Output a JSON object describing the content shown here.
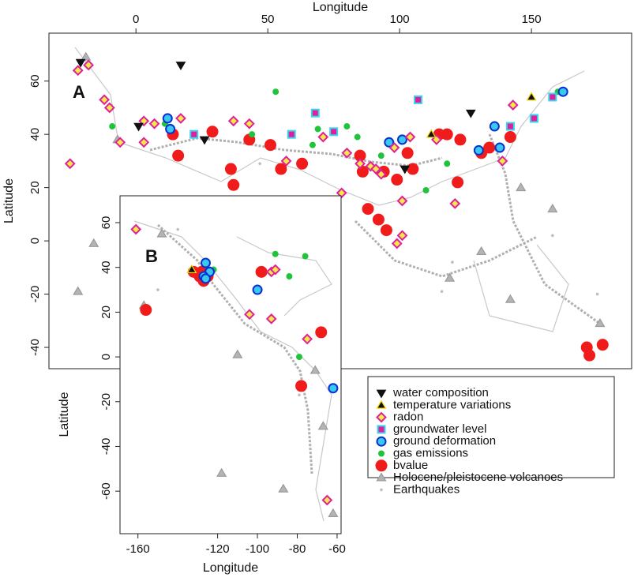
{
  "legend": [
    {
      "name": "water composition",
      "marker": "tri-down",
      "fill": "#111111",
      "stroke": "#111111"
    },
    {
      "name": "temperature variations",
      "marker": "tri-up",
      "fill": "#111111",
      "stroke": "#f5d800"
    },
    {
      "name": "radon",
      "marker": "diamond",
      "fill": "#f5e94a",
      "stroke": "#e0209a"
    },
    {
      "name": "groundwater level",
      "marker": "square",
      "fill": "#e0209a",
      "stroke": "#38d4f0"
    },
    {
      "name": "ground deformation",
      "marker": "circle",
      "fill": "#38c8f0",
      "stroke": "#0a2fd0"
    },
    {
      "name": "gas emissions",
      "marker": "dot",
      "fill": "#1fc43a",
      "stroke": "#1fc43a"
    },
    {
      "name": "bvalue",
      "marker": "circle",
      "fill": "#f01c1c",
      "stroke": "#f01c1c"
    },
    {
      "name": "Holocene/pleistocene volcanoes",
      "marker": "tri-up",
      "fill": "#b4b4b4",
      "stroke": "#9a9a9a"
    },
    {
      "name": "Earthquakes",
      "marker": "pt",
      "fill": "#bdbdbd",
      "stroke": "#bdbdbd"
    }
  ],
  "chart_data": [
    {
      "type": "scatter",
      "panel": "A",
      "x_label": "Longitude",
      "y_label": "Latitude",
      "xlim": [
        -33,
        188
      ],
      "ylim": [
        -48,
        78
      ],
      "xticks": [
        0,
        50,
        100,
        150
      ],
      "yticks": [
        -40,
        -20,
        0,
        20,
        40,
        60
      ],
      "series": [
        {
          "x": [
            17,
            127,
            26,
            1,
            -21,
            102
          ],
          "y": [
            66,
            48,
            38,
            43,
            67,
            27
          ]
        },
        {
          "x": [
            112,
            150
          ],
          "y": [
            40,
            54
          ]
        },
        {
          "x": [
            -22,
            -18,
            -12,
            -10,
            3,
            3,
            7,
            17,
            37,
            43,
            -25,
            -6,
            71,
            80,
            98,
            85,
            78,
            89,
            91,
            93,
            101,
            101,
            99,
            114,
            121,
            139,
            143,
            57,
            104
          ],
          "y": [
            64,
            66,
            53,
            50,
            45,
            37,
            44,
            46,
            45,
            44,
            29,
            37,
            39,
            33,
            35,
            29,
            18,
            28,
            27,
            25,
            15,
            2,
            -1,
            38,
            14,
            30,
            51,
            30,
            39
          ]
        },
        {
          "x": [
            73,
            107,
            151,
            59,
            68,
            22,
            75,
            142,
            158
          ],
          "y": [
            14,
            53,
            46,
            40,
            48,
            40,
            41,
            43,
            54
          ]
        },
        {
          "x": [
            12,
            13,
            96,
            101,
            136,
            130,
            162,
            138
          ],
          "y": [
            46,
            42,
            37,
            38,
            43,
            34,
            56,
            35
          ]
        },
        {
          "x": [
            -9,
            11,
            53,
            67,
            69,
            80,
            110,
            118,
            160,
            44,
            84,
            93
          ],
          "y": [
            43,
            44,
            56,
            36,
            42,
            43,
            19,
            29,
            56,
            40,
            39,
            32
          ]
        },
        {
          "x": [
            14,
            16,
            29,
            43,
            51,
            55,
            36,
            37,
            85,
            86,
            94,
            99,
            105,
            103,
            88,
            92,
            95,
            115,
            118,
            123,
            131,
            134,
            142,
            122,
            172,
            177,
            171,
            63
          ],
          "y": [
            40,
            32,
            41,
            38,
            36,
            27,
            27,
            21,
            32,
            26,
            26,
            23,
            27,
            33,
            12,
            8,
            4,
            40,
            40,
            38,
            33,
            35,
            39,
            22,
            -43,
            -39,
            -40,
            29
          ]
        },
        {
          "x": [
            -19,
            -7,
            47,
            119,
            131,
            158,
            176,
            146,
            -16,
            -22,
            26,
            44,
            142
          ],
          "y": [
            69,
            38,
            3,
            -14,
            -4,
            12,
            -31,
            20,
            -1,
            -19,
            2,
            14,
            -22
          ]
        },
        {
          "x": [
            158,
            116,
            47,
            120,
            175
          ],
          "y": [
            2,
            -19,
            29,
            -8,
            -20
          ]
        }
      ]
    },
    {
      "type": "scatter",
      "panel": "B",
      "x_label": "Longitude",
      "y_label": "Latitude",
      "xlim": [
        -169,
        -58
      ],
      "ylim": [
        -79,
        72
      ],
      "xticks": [
        -160,
        -120,
        -100,
        -80,
        -60
      ],
      "yticks": [
        -60,
        -40,
        -20,
        0,
        20,
        40,
        60
      ],
      "series": [
        {
          "x": [],
          "y": []
        },
        {
          "x": [
            -133
          ],
          "y": [
            39
          ]
        },
        {
          "x": [
            -161,
            -93,
            -91,
            -104,
            -93,
            -75,
            -65
          ],
          "y": [
            57,
            38,
            39,
            19,
            17,
            8,
            -64
          ]
        },
        {
          "x": [],
          "y": []
        },
        {
          "x": [
            -126,
            -124,
            -127,
            -100,
            -62,
            -126
          ],
          "y": [
            42,
            38,
            36,
            30,
            -14,
            35
          ]
        },
        {
          "x": [
            -122,
            -91,
            -76,
            -84,
            -79
          ],
          "y": [
            39,
            46,
            45,
            36,
            0
          ]
        },
        {
          "x": [
            -156,
            -132,
            -129,
            -127,
            -125,
            -98,
            -68,
            -78,
            -128
          ],
          "y": [
            21,
            38,
            36,
            34,
            36,
            38,
            11,
            -13,
            38
          ]
        },
        {
          "x": [
            -157,
            -148,
            -110,
            -71,
            -67,
            -87,
            -118,
            -62
          ],
          "y": [
            23,
            55,
            1,
            -6,
            -31,
            -59,
            -52,
            -70
          ]
        },
        {
          "x": [
            -140,
            -79,
            -150
          ],
          "y": [
            57,
            -17,
            30
          ]
        }
      ]
    }
  ]
}
